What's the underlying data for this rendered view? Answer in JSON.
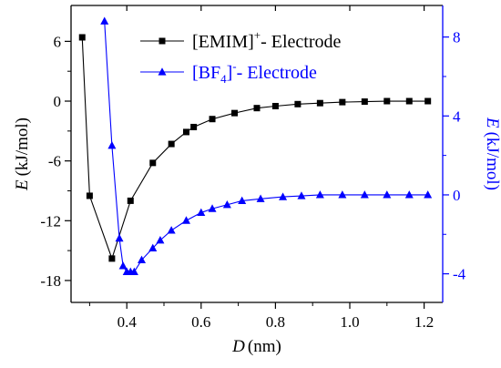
{
  "chart_data": {
    "type": "line",
    "x": {
      "label_var": "D",
      "label_unit": "(nm)",
      "range": [
        0.25,
        1.25
      ],
      "ticks": [
        0.4,
        0.6,
        0.8,
        1.0,
        1.2
      ],
      "tick_labels": [
        "0.4",
        "0.6",
        "0.8",
        "1.0",
        "1.2"
      ]
    },
    "y_left": {
      "label_var": "E",
      "label_unit": "(kJ/mol)",
      "range": [
        -20.2,
        9.6
      ],
      "ticks": [
        -18,
        -12,
        -6,
        0,
        6
      ],
      "tick_labels": [
        "-18",
        "-12",
        "-6",
        "0",
        "6"
      ],
      "color": "#000000"
    },
    "y_right": {
      "label_var": "E",
      "label_unit": "(kJ/mol)",
      "range": [
        -5.45,
        9.6
      ],
      "ticks": [
        -4,
        0,
        4,
        8
      ],
      "tick_labels": [
        "-4",
        "0",
        "4",
        "8"
      ],
      "color": "#0000ff"
    },
    "series": [
      {
        "name_main": "[EMIM]",
        "name_sup": "+",
        "name_tail": "- Electrode",
        "axis": "left",
        "color": "#000000",
        "marker": "square",
        "points": [
          [
            0.28,
            6.4
          ],
          [
            0.3,
            -9.5
          ],
          [
            0.36,
            -15.8
          ],
          [
            0.41,
            -10.0
          ],
          [
            0.47,
            -6.2
          ],
          [
            0.52,
            -4.3
          ],
          [
            0.56,
            -3.1
          ],
          [
            0.58,
            -2.6
          ],
          [
            0.63,
            -1.8
          ],
          [
            0.69,
            -1.2
          ],
          [
            0.75,
            -0.7
          ],
          [
            0.8,
            -0.5
          ],
          [
            0.86,
            -0.3
          ],
          [
            0.92,
            -0.2
          ],
          [
            0.98,
            -0.1
          ],
          [
            1.04,
            -0.05
          ],
          [
            1.1,
            0.0
          ],
          [
            1.16,
            0.0
          ],
          [
            1.21,
            0.0
          ]
        ]
      },
      {
        "name_main": "[BF",
        "name_sub": "4",
        "name_close": "]",
        "name_sup": "-",
        "name_tail": "- Electrode",
        "axis": "right",
        "color": "#0000ff",
        "marker": "triangle",
        "points": [
          [
            0.34,
            8.8
          ],
          [
            0.36,
            2.5
          ],
          [
            0.38,
            -2.2
          ],
          [
            0.39,
            -3.6
          ],
          [
            0.4,
            -3.9
          ],
          [
            0.41,
            -3.9
          ],
          [
            0.42,
            -3.9
          ],
          [
            0.44,
            -3.3
          ],
          [
            0.47,
            -2.7
          ],
          [
            0.49,
            -2.3
          ],
          [
            0.52,
            -1.8
          ],
          [
            0.56,
            -1.3
          ],
          [
            0.6,
            -0.9
          ],
          [
            0.63,
            -0.7
          ],
          [
            0.67,
            -0.5
          ],
          [
            0.71,
            -0.3
          ],
          [
            0.76,
            -0.2
          ],
          [
            0.82,
            -0.1
          ],
          [
            0.87,
            -0.05
          ],
          [
            0.92,
            0.0
          ],
          [
            0.98,
            0.0
          ],
          [
            1.04,
            0.0
          ],
          [
            1.1,
            0.0
          ],
          [
            1.16,
            0.0
          ],
          [
            1.21,
            0.0
          ]
        ]
      }
    ],
    "legend_placement": "top-center",
    "grid": false
  }
}
